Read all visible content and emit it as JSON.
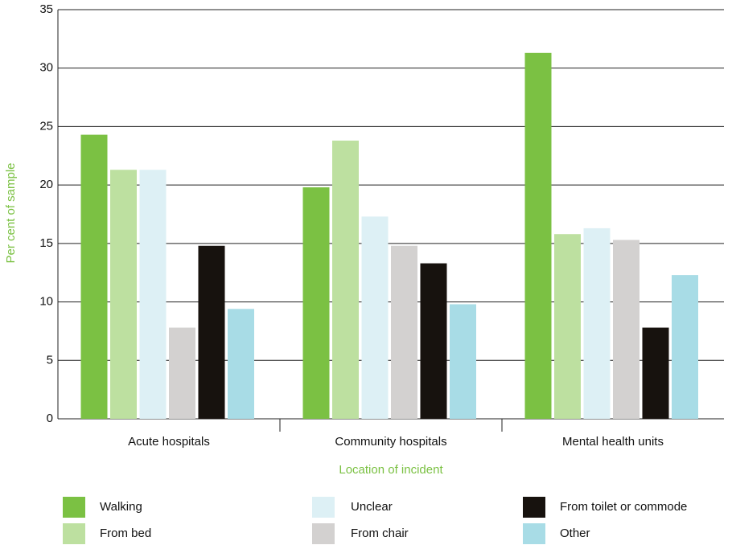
{
  "chart_data": {
    "type": "bar",
    "categories": [
      "Acute hospitals",
      "Community hospitals",
      "Mental health units"
    ],
    "series": [
      {
        "name": "Walking",
        "color": "#7bc143",
        "values": [
          24.3,
          19.8,
          31.3
        ]
      },
      {
        "name": "From bed",
        "color": "#bde0a0",
        "values": [
          21.3,
          23.8,
          15.8
        ]
      },
      {
        "name": "Unclear",
        "color": "#ddf0f5",
        "values": [
          21.3,
          17.3,
          16.3
        ]
      },
      {
        "name": "From chair",
        "color": "#d3d1d0",
        "values": [
          7.8,
          14.8,
          15.3
        ]
      },
      {
        "name": "From toilet or commode",
        "color": "#17120e",
        "values": [
          14.8,
          13.3,
          7.8
        ]
      },
      {
        "name": "Other",
        "color": "#a8dce6",
        "values": [
          9.4,
          9.8,
          12.3
        ]
      }
    ],
    "x_label": "Location of incident",
    "y_label": "Per cent of sample",
    "label_color": "#7bc143",
    "ylim": [
      0,
      35
    ],
    "yticks": [
      0,
      5,
      10,
      15,
      20,
      25,
      30,
      35
    ],
    "grid": true,
    "legend": "bottom"
  }
}
